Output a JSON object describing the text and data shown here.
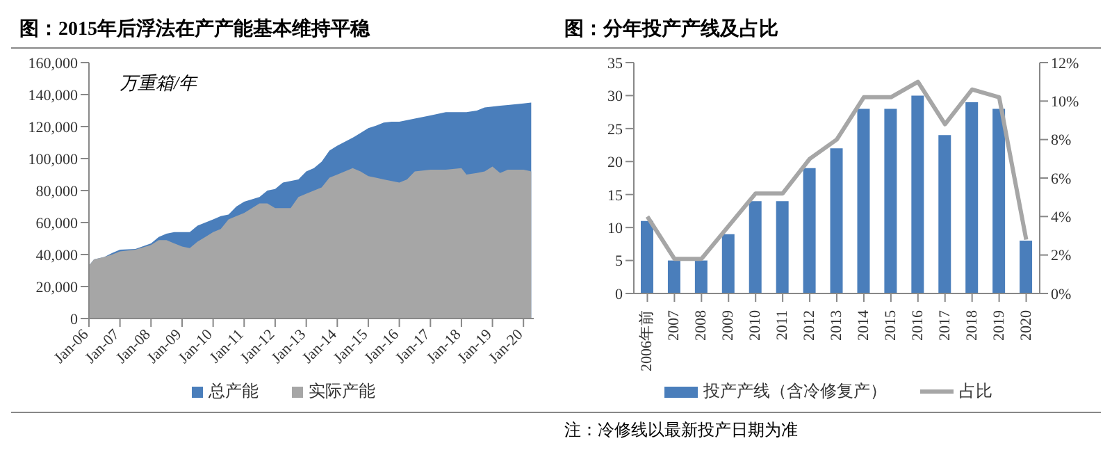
{
  "chart_data": [
    {
      "type": "area",
      "title": "图：2015年后浮法在产产能基本维持平稳",
      "ylabel": "万重箱/年",
      "x": [
        "2006-01",
        "2006-03",
        "2006-07",
        "2006-10",
        "2007-01",
        "2007-07",
        "2008-01",
        "2008-04",
        "2008-07",
        "2008-10",
        "2009-01",
        "2009-04",
        "2009-07",
        "2009-10",
        "2010-01",
        "2010-04",
        "2010-07",
        "2010-10",
        "2011-01",
        "2011-07",
        "2011-10",
        "2012-01",
        "2012-04",
        "2012-07",
        "2012-10",
        "2013-01",
        "2013-04",
        "2013-07",
        "2013-10",
        "2014-01",
        "2014-07",
        "2014-10",
        "2015-01",
        "2015-04",
        "2015-07",
        "2015-10",
        "2016-01",
        "2016-04",
        "2016-07",
        "2017-01",
        "2017-07",
        "2018-01",
        "2018-03",
        "2018-07",
        "2018-10",
        "2019-01",
        "2019-04",
        "2019-07",
        "2020-01",
        "2020-04"
      ],
      "series": [
        {
          "name": "总产能",
          "color": "#4a7ebb",
          "values": [
            33000,
            37000,
            38500,
            41000,
            43000,
            43500,
            47000,
            51000,
            53000,
            54000,
            54000,
            54000,
            58000,
            60000,
            62000,
            64000,
            65000,
            70000,
            73000,
            76000,
            80000,
            81000,
            85000,
            86000,
            87000,
            92000,
            94000,
            98000,
            105000,
            108000,
            113000,
            116000,
            119000,
            120500,
            122500,
            123000,
            123000,
            124000,
            125000,
            127000,
            129000,
            129000,
            129000,
            130000,
            132000,
            132500,
            133000,
            133500,
            134500,
            135000
          ]
        },
        {
          "name": "实际产能",
          "color": "#a6a6a6",
          "values": [
            33000,
            37000,
            38500,
            40000,
            42000,
            43000,
            46000,
            49000,
            49000,
            47000,
            45000,
            44000,
            48000,
            51000,
            54000,
            56000,
            62000,
            64000,
            66000,
            72000,
            72000,
            69000,
            69000,
            69000,
            76000,
            78000,
            80000,
            82000,
            88000,
            90000,
            94000,
            92000,
            89000,
            88000,
            87000,
            86000,
            85000,
            87000,
            92000,
            93000,
            93000,
            94000,
            90000,
            91000,
            92000,
            95000,
            91000,
            93000,
            93000,
            92000
          ]
        }
      ],
      "xlim": [
        "2006-01",
        "2020-05"
      ],
      "xticks": [
        {
          "value": "2006-01",
          "label": "Jan-06"
        },
        {
          "value": "2007-01",
          "label": "Jan-07"
        },
        {
          "value": "2008-01",
          "label": "Jan-08"
        },
        {
          "value": "2009-01",
          "label": "Jan-09"
        },
        {
          "value": "2010-01",
          "label": "Jan-10"
        },
        {
          "value": "2011-01",
          "label": "Jan-11"
        },
        {
          "value": "2012-01",
          "label": "Jan-12"
        },
        {
          "value": "2013-01",
          "label": "Jan-13"
        },
        {
          "value": "2014-01",
          "label": "Jan-14"
        },
        {
          "value": "2015-01",
          "label": "Jan-15"
        },
        {
          "value": "2016-01",
          "label": "Jan-16"
        },
        {
          "value": "2017-01",
          "label": "Jan-17"
        },
        {
          "value": "2018-01",
          "label": "Jan-18"
        },
        {
          "value": "2019-01",
          "label": "Jan-19"
        },
        {
          "value": "2020-01",
          "label": "Jan-20"
        }
      ],
      "ylim": [
        0,
        160000
      ],
      "yticks": [
        {
          "value": 0,
          "label": "0"
        },
        {
          "value": 20000,
          "label": "20,000"
        },
        {
          "value": 40000,
          "label": "40,000"
        },
        {
          "value": 60000,
          "label": "60,000"
        },
        {
          "value": 80000,
          "label": "80,000"
        },
        {
          "value": 100000,
          "label": "100,000"
        },
        {
          "value": 120000,
          "label": "120,000"
        },
        {
          "value": 140000,
          "label": "140,000"
        },
        {
          "value": 160000,
          "label": "160,000"
        }
      ],
      "legend": "bottom",
      "grid": false
    },
    {
      "type": "bar",
      "title": "图：分年投产产线及占比",
      "categories": [
        "2006年前",
        "2007",
        "2008",
        "2009",
        "2010",
        "2011",
        "2012",
        "2013",
        "2014",
        "2015",
        "2016",
        "2017",
        "2018",
        "2019",
        "2020"
      ],
      "series": [
        {
          "name": "投产产线（含冷修复产）",
          "color": "#4a7ebb",
          "values": [
            11,
            5,
            5,
            9,
            14,
            14,
            19,
            22,
            28,
            28,
            30,
            24,
            29,
            28,
            8
          ]
        },
        {
          "name": "占比",
          "type": "line",
          "axis": "y2",
          "color": "#a6a6a6",
          "values": [
            4,
            1.8,
            1.8,
            3.5,
            5.2,
            5.2,
            7,
            8,
            10.2,
            10.2,
            11,
            8.8,
            10.6,
            10.2,
            2.8
          ]
        }
      ],
      "ylim": [
        0,
        35
      ],
      "yticks": [
        0,
        5,
        10,
        15,
        20,
        25,
        30,
        35
      ],
      "y2lim": [
        0,
        12
      ],
      "y2ticks": [
        {
          "value": 0,
          "label": "0%"
        },
        {
          "value": 2,
          "label": "2%"
        },
        {
          "value": 4,
          "label": "4%"
        },
        {
          "value": 6,
          "label": "6%"
        },
        {
          "value": 8,
          "label": "8%"
        },
        {
          "value": 10,
          "label": "10%"
        },
        {
          "value": 12,
          "label": "12%"
        }
      ],
      "annotations": [
        "注：冷修线以最新投产日期为准"
      ],
      "legend": "bottom",
      "grid": false,
      "marker": "none"
    }
  ]
}
